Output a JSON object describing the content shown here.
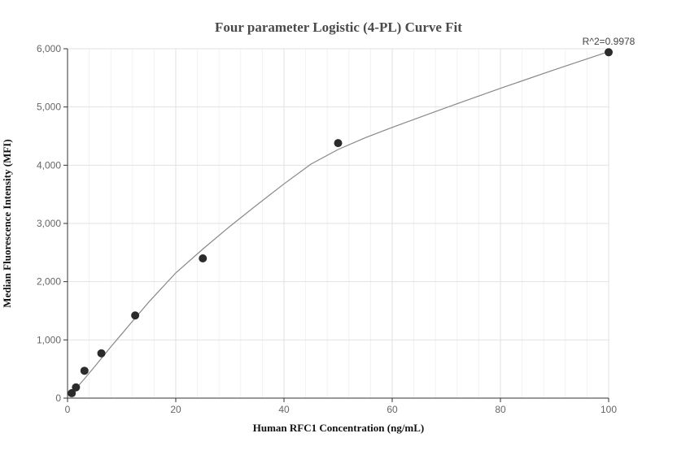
{
  "chart_data": {
    "type": "scatter",
    "title": "Four parameter Logistic (4-PL) Curve Fit",
    "xlabel": "Human RFC1 Concentration (ng/mL)",
    "ylabel": "Median Fluorescence Intensity (MFI)",
    "xlim": [
      0,
      100
    ],
    "ylim": [
      0,
      6000
    ],
    "x_ticks": [
      0,
      20,
      40,
      60,
      80,
      100
    ],
    "x_tick_labels": [
      "0",
      "20",
      "40",
      "60",
      "80",
      "100"
    ],
    "y_ticks": [
      0,
      1000,
      2000,
      3000,
      4000,
      5000,
      6000
    ],
    "y_tick_labels": [
      "0",
      "1,000",
      "2,000",
      "3,000",
      "4,000",
      "5,000",
      "6,000"
    ],
    "grid": true,
    "annotation": "R^2=0.9978",
    "series": [
      {
        "type": "scatter",
        "x": [
          0.78,
          1.56,
          3.13,
          6.25,
          12.5,
          25,
          50,
          100
        ],
        "y": [
          85,
          185,
          470,
          770,
          1420,
          2400,
          4380,
          5940
        ]
      },
      {
        "type": "line",
        "x": [
          0,
          1,
          2,
          3,
          5,
          8,
          10,
          12,
          15,
          20,
          25,
          30,
          35,
          40,
          45,
          50,
          55,
          60,
          70,
          80,
          90,
          100
        ],
        "y": [
          30,
          110,
          210,
          320,
          540,
          880,
          1100,
          1320,
          1650,
          2150,
          2560,
          2950,
          3320,
          3680,
          4020,
          4270,
          4470,
          4650,
          4990,
          5320,
          5640,
          5950
        ]
      }
    ],
    "colors": {
      "points": "#2b2b2b",
      "curve": "#888888",
      "grid_major": "#e2e2e2",
      "grid_minor": "#f2f2f2",
      "axis": "#333333"
    }
  }
}
